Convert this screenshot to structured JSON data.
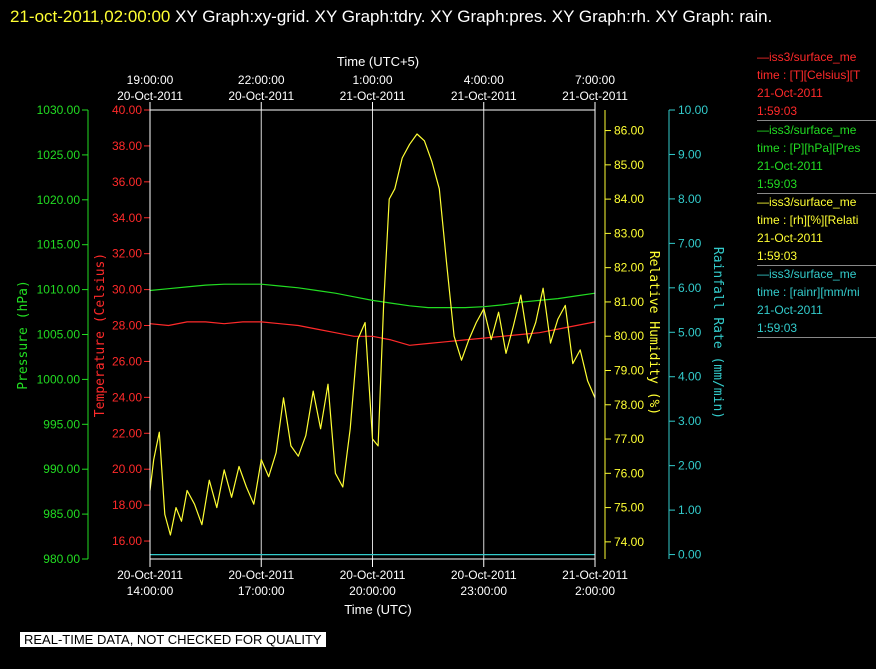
{
  "header": {
    "timestamp": "21-oct-2011,02:00:00",
    "title_rest": "  XY Graph:xy-grid.  XY Graph:tdry.  XY Graph:pres.  XY Graph:rh.  XY Graph: rain."
  },
  "legend": [
    {
      "line1": "—iss3/surface_me",
      "line2": "time : [T][Celsius][T",
      "line3": "21-Oct-2011",
      "line4": "1:59:03",
      "color": "#ff2a2a"
    },
    {
      "line1": "—iss3/surface_me",
      "line2": "time : [P][hPa][Pres",
      "line3": "21-Oct-2011",
      "line4": "1:59:03",
      "color": "#22dd22"
    },
    {
      "line1": "—iss3/surface_me",
      "line2": "time : [rh][%][Relati",
      "line3": "21-Oct-2011",
      "line4": "1:59:03",
      "color": "#ffff33"
    },
    {
      "line1": "—iss3/surface_me",
      "line2": "time : [rainr][mm/mi",
      "line3": "21-Oct-2011",
      "line4": "1:59:03",
      "color": "#33cccc"
    }
  ],
  "disclaimer": "REAL-TIME DATA, NOT CHECKED FOR QUALITY",
  "chart_data": {
    "type": "line",
    "top_axis": {
      "label": "Time (UTC+5)",
      "ticks": [
        {
          "time": "19:00:00",
          "date": "20-Oct-2011"
        },
        {
          "time": "22:00:00",
          "date": "20-Oct-2011"
        },
        {
          "time": "1:00:00",
          "date": "21-Oct-2011"
        },
        {
          "time": "4:00:00",
          "date": "21-Oct-2011"
        },
        {
          "time": "7:00:00",
          "date": "21-Oct-2011"
        }
      ]
    },
    "bottom_axis": {
      "label": "Time (UTC)",
      "range_hours_utc": [
        14.0,
        26.0
      ],
      "ticks": [
        {
          "hour": 14,
          "date": "20-Oct-2011",
          "time": "14:00:00"
        },
        {
          "hour": 17,
          "date": "20-Oct-2011",
          "time": "17:00:00"
        },
        {
          "hour": 20,
          "date": "20-Oct-2011",
          "time": "20:00:00"
        },
        {
          "hour": 23,
          "date": "20-Oct-2011",
          "time": "23:00:00"
        },
        {
          "hour": 26,
          "date": "21-Oct-2011",
          "time": "2:00:00"
        }
      ],
      "grid": true
    },
    "axes": {
      "pressure": {
        "label": "Pressure (hPa)",
        "color": "#22dd22",
        "min": 980,
        "max": 1030,
        "ticks": [
          "980.00",
          "985.00",
          "990.00",
          "995.00",
          "1000.00",
          "1005.00",
          "1010.00",
          "1015.00",
          "1020.00",
          "1025.00",
          "1030.00"
        ]
      },
      "temperature": {
        "label": "Temperature (Celsius)",
        "color": "#ff2a2a",
        "min": 15,
        "max": 40,
        "ticks": [
          "16.00",
          "18.00",
          "20.00",
          "22.00",
          "24.00",
          "26.00",
          "28.00",
          "30.00",
          "32.00",
          "34.00",
          "36.00",
          "38.00",
          "40.00"
        ]
      },
      "humidity": {
        "label": "Relative Humidity (%)",
        "color": "#ffff33",
        "min": 73.5,
        "max": 86.6,
        "ticks": [
          "74.00",
          "75.00",
          "76.00",
          "77.00",
          "78.00",
          "79.00",
          "80.00",
          "81.00",
          "82.00",
          "83.00",
          "84.00",
          "85.00",
          "86.00"
        ]
      },
      "rainfall": {
        "label": "Rainfall Rate (mm/min)",
        "color": "#33cccc",
        "min": -0.1,
        "max": 10.0,
        "ticks": [
          "0.00",
          "1.00",
          "2.00",
          "3.00",
          "4.00",
          "5.00",
          "6.00",
          "7.00",
          "8.00",
          "9.00",
          "10.00"
        ]
      }
    },
    "series": [
      {
        "name": "Temperature",
        "axis": "temperature",
        "color": "#ff2a2a",
        "x": [
          14.0,
          14.5,
          15.0,
          15.5,
          16.0,
          16.5,
          17.0,
          17.5,
          18.0,
          18.5,
          19.0,
          19.5,
          20.0,
          20.5,
          21.0,
          21.5,
          22.0,
          22.5,
          23.0,
          23.5,
          24.0,
          24.5,
          25.0,
          25.5,
          26.0
        ],
        "y": [
          28.1,
          28.0,
          28.2,
          28.2,
          28.1,
          28.2,
          28.2,
          28.1,
          28.0,
          27.8,
          27.6,
          27.4,
          27.4,
          27.2,
          26.9,
          27.0,
          27.1,
          27.2,
          27.3,
          27.4,
          27.5,
          27.6,
          27.8,
          28.0,
          28.2
        ]
      },
      {
        "name": "Pressure",
        "axis": "pressure",
        "color": "#22dd22",
        "x": [
          14.0,
          14.5,
          15.0,
          15.5,
          16.0,
          16.5,
          17.0,
          17.5,
          18.0,
          18.5,
          19.0,
          19.5,
          20.0,
          20.5,
          21.0,
          21.5,
          22.0,
          22.5,
          23.0,
          23.5,
          24.0,
          24.5,
          25.0,
          25.5,
          26.0
        ],
        "y": [
          1009.9,
          1010.1,
          1010.3,
          1010.5,
          1010.6,
          1010.6,
          1010.6,
          1010.4,
          1010.2,
          1009.9,
          1009.6,
          1009.2,
          1008.8,
          1008.5,
          1008.2,
          1008.0,
          1008.0,
          1008.0,
          1008.1,
          1008.3,
          1008.6,
          1008.8,
          1009.0,
          1009.3,
          1009.6
        ]
      },
      {
        "name": "Relative Humidity",
        "axis": "humidity",
        "color": "#ffff33",
        "x": [
          14.0,
          14.1,
          14.25,
          14.4,
          14.55,
          14.7,
          14.85,
          15.0,
          15.2,
          15.4,
          15.6,
          15.8,
          16.0,
          16.2,
          16.4,
          16.6,
          16.8,
          17.0,
          17.2,
          17.4,
          17.6,
          17.8,
          18.0,
          18.2,
          18.4,
          18.6,
          18.8,
          19.0,
          19.2,
          19.4,
          19.6,
          19.8,
          20.0,
          20.15,
          20.3,
          20.45,
          20.6,
          20.8,
          21.0,
          21.2,
          21.4,
          21.6,
          21.8,
          22.0,
          22.2,
          22.4,
          22.6,
          22.8,
          23.0,
          23.2,
          23.4,
          23.6,
          23.8,
          24.0,
          24.2,
          24.4,
          24.6,
          24.8,
          25.0,
          25.2,
          25.4,
          25.6,
          25.8,
          26.0
        ],
        "y": [
          75.5,
          76.4,
          77.2,
          74.8,
          74.2,
          75.0,
          74.6,
          75.5,
          75.1,
          74.5,
          75.8,
          75.0,
          76.1,
          75.3,
          76.2,
          75.6,
          75.1,
          76.4,
          75.9,
          76.6,
          78.2,
          76.8,
          76.5,
          77.1,
          78.4,
          77.3,
          78.6,
          76.0,
          75.6,
          77.3,
          79.9,
          80.4,
          77.0,
          76.8,
          80.9,
          84.0,
          84.3,
          85.2,
          85.6,
          85.9,
          85.7,
          85.1,
          84.3,
          82.1,
          80.0,
          79.3,
          79.9,
          80.4,
          80.8,
          79.9,
          80.7,
          79.5,
          80.3,
          81.2,
          79.8,
          80.4,
          81.4,
          79.8,
          80.5,
          80.9,
          79.2,
          79.6,
          78.7,
          78.2
        ]
      },
      {
        "name": "Rainfall Rate",
        "axis": "rainfall",
        "color": "#33cccc",
        "x": [
          14.0,
          26.0
        ],
        "y": [
          0.0,
          0.0
        ]
      }
    ]
  }
}
